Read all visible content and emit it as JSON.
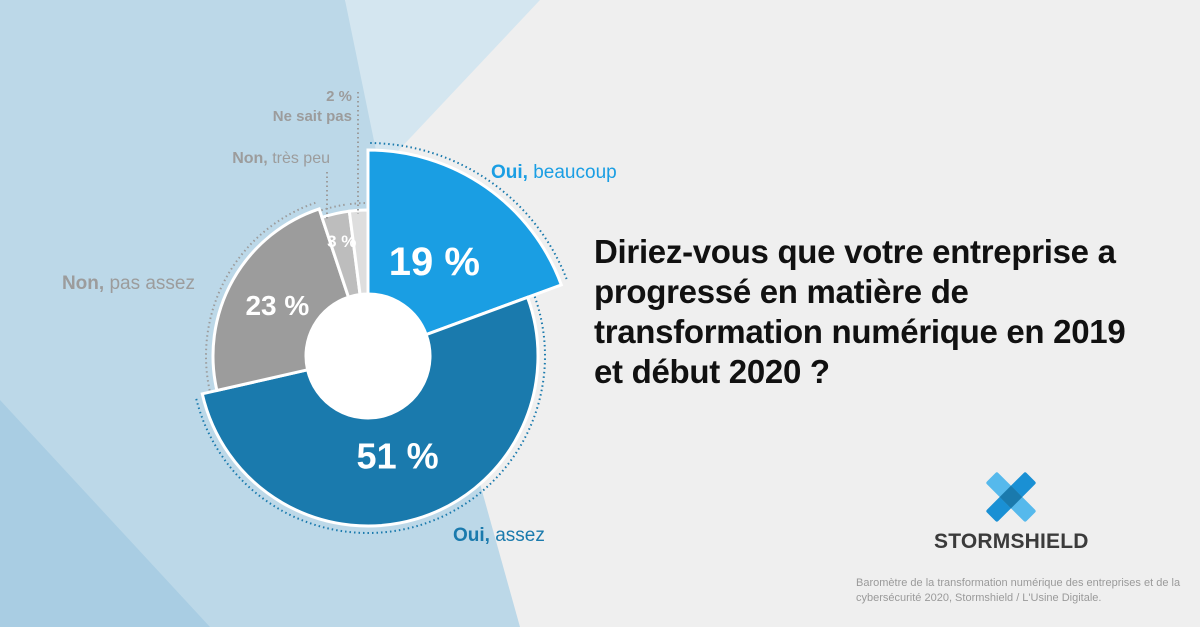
{
  "question": "Diriez-vous que votre entreprise a progressé en matière de transformation numérique en 2019 et début 2020 ?",
  "brand": {
    "name": "STORMSHIELD",
    "logo_icon": "stormshield-logo-icon"
  },
  "source": "Baromètre de la transformation numérique des entreprises et de la cybersécurité 2020, Stormshield / L'Usine Digitale.",
  "chart_data": {
    "type": "pie",
    "variant": "donut",
    "slices": [
      {
        "bold": "Oui,",
        "label": "beaucoup",
        "value": 19,
        "value_label": "19 %",
        "color": "#1a9ee3"
      },
      {
        "bold": "Oui,",
        "label": "assez",
        "value": 51,
        "value_label": "51 %",
        "color": "#1a7aad"
      },
      {
        "bold": "Non,",
        "label": "pas assez",
        "value": 23,
        "value_label": "23 %",
        "color": "#9c9c9c"
      },
      {
        "bold": "Non,",
        "label": "très peu",
        "value": 3,
        "value_label": "3 %",
        "color": "#bdbdbd"
      },
      {
        "bold": "Ne sait pas",
        "label": "",
        "value": 2,
        "value_label": "2 %",
        "color": "#dedede"
      }
    ],
    "colors": {
      "oui_text": "#1a7aad",
      "oui_beaucoup_text": "#1a9ee3",
      "non_text": "#9c9c9c"
    }
  }
}
